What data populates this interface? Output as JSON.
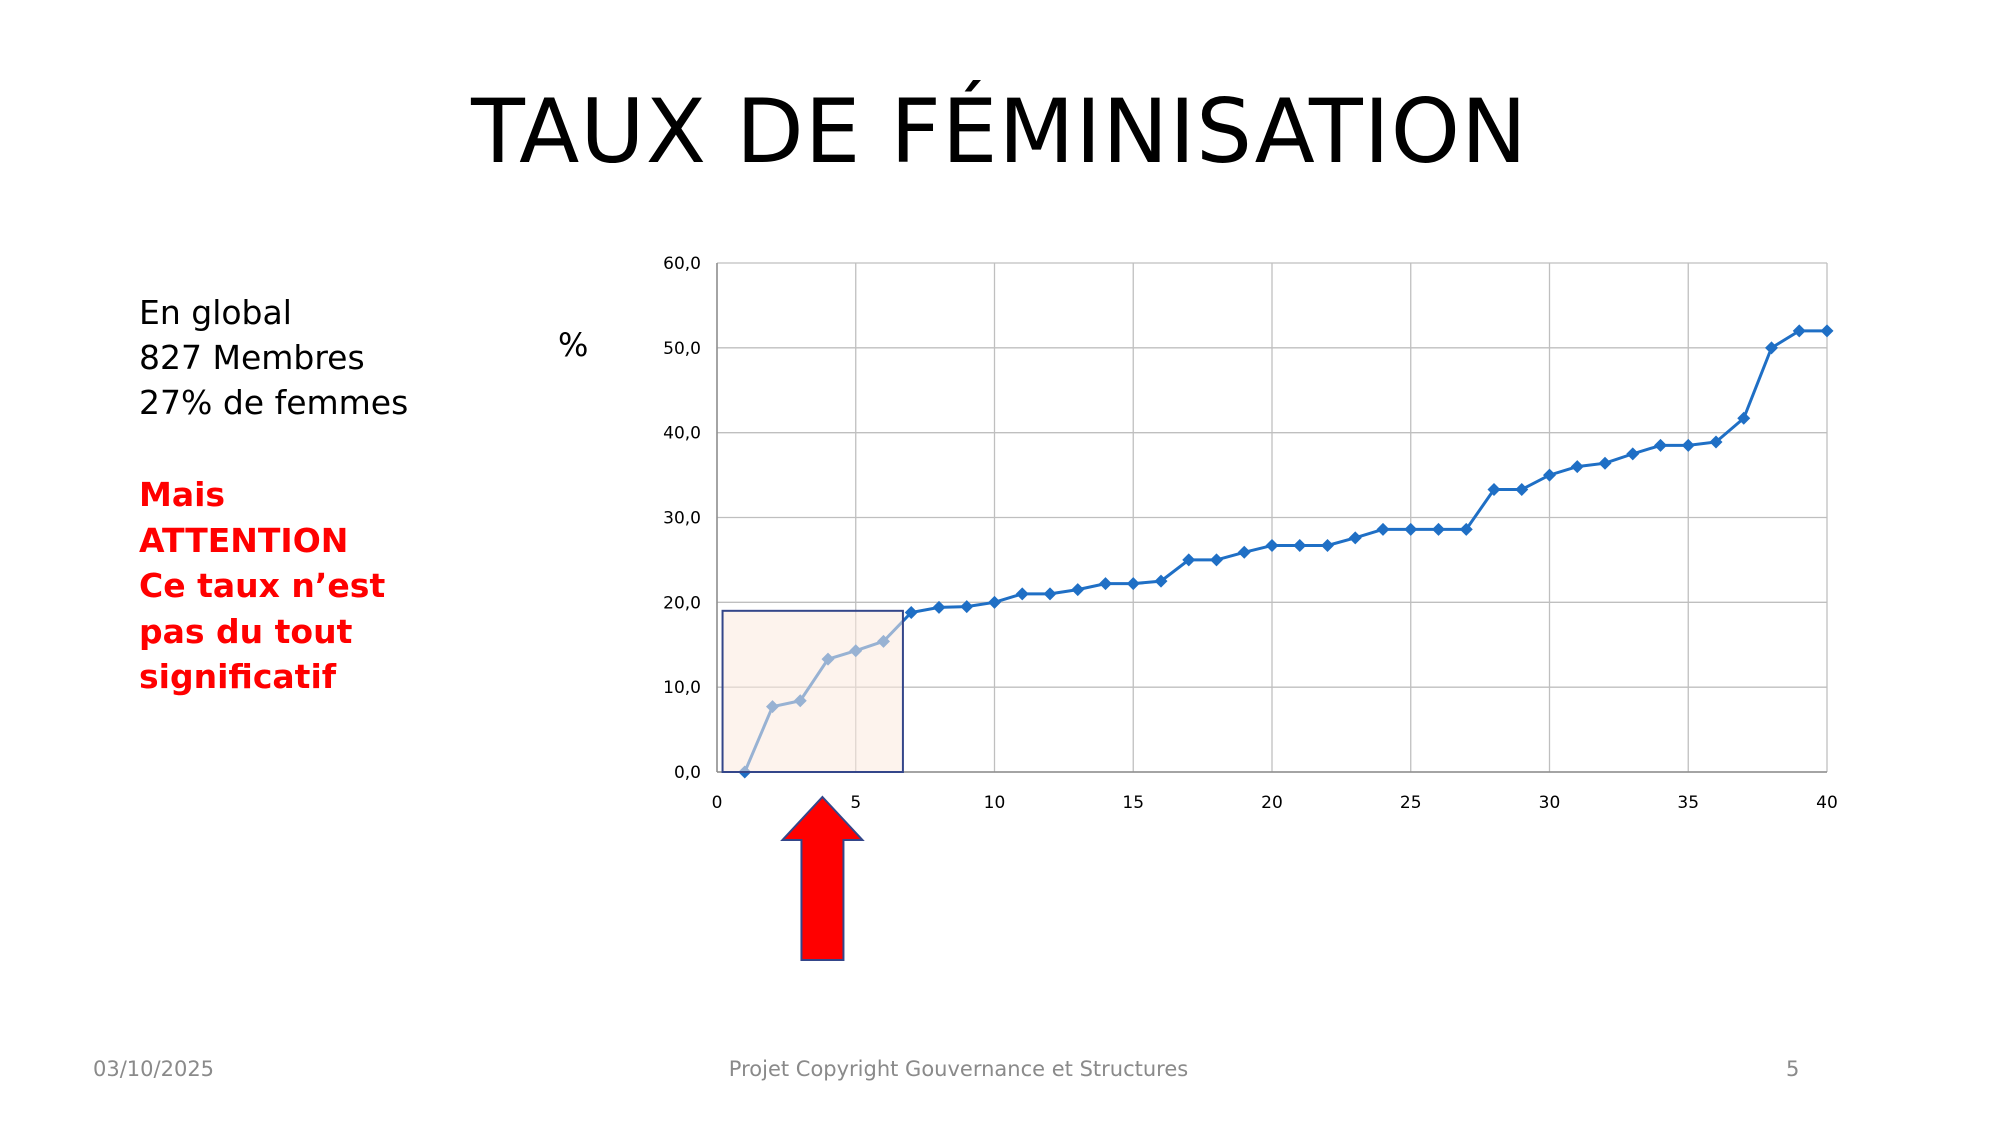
{
  "slide": {
    "title": "TAUX DE FÉMINISATION",
    "summary": [
      "En global",
      "827 Membres",
      "27% de femmes"
    ],
    "warning": [
      "Mais",
      "ATTENTION",
      "Ce taux n’est",
      "pas du tout",
      "significatif"
    ],
    "unit_label": "%"
  },
  "footer": {
    "date": "03/10/2025",
    "center": "Projet Copyright Gouvernance et Structures",
    "page": "5"
  },
  "colors": {
    "series": "#1f6fc5",
    "grid": "#bfbfbf",
    "highlight_fill": "#fbe9df",
    "highlight_border": "#34468a",
    "arrow_fill": "#ff0000",
    "arrow_border": "#34468a",
    "warning_text": "#ff0000"
  },
  "chart_data": {
    "type": "scatter",
    "title": "",
    "xlabel": "",
    "ylabel": "%",
    "xlim": [
      0,
      40
    ],
    "ylim": [
      0,
      60
    ],
    "x_ticks": [
      "0",
      "5",
      "10",
      "15",
      "20",
      "25",
      "30",
      "35",
      "40"
    ],
    "y_ticks": [
      "0,0",
      "10,0",
      "20,0",
      "30,0",
      "40,0",
      "50,0",
      "60,0"
    ],
    "grid": true,
    "legend": "none",
    "series": [
      {
        "x": [
          1,
          2,
          3,
          4,
          5,
          6,
          7,
          8,
          9,
          10,
          11,
          12,
          13,
          14,
          15,
          16,
          17,
          18,
          19,
          20,
          21,
          22,
          23,
          24,
          25,
          26,
          27,
          28,
          29,
          30,
          31,
          32,
          33,
          34,
          35,
          36,
          37,
          38,
          39,
          40
        ],
        "y": [
          0.0,
          7.7,
          8.4,
          13.3,
          14.3,
          15.4,
          18.8,
          19.4,
          19.5,
          20.0,
          21.0,
          21.0,
          21.5,
          22.2,
          22.2,
          22.5,
          25.0,
          25.0,
          25.9,
          26.7,
          26.7,
          26.7,
          27.6,
          28.6,
          28.6,
          28.6,
          28.6,
          33.3,
          33.3,
          35.0,
          36.0,
          36.4,
          37.5,
          38.5,
          38.5,
          38.9,
          41.7,
          50.0,
          52.0,
          52.0
        ]
      }
    ],
    "highlight": {
      "x_range": [
        0.2,
        6.7
      ],
      "y_range": [
        0,
        19.0
      ]
    },
    "arrow_at_x": 3.8
  }
}
